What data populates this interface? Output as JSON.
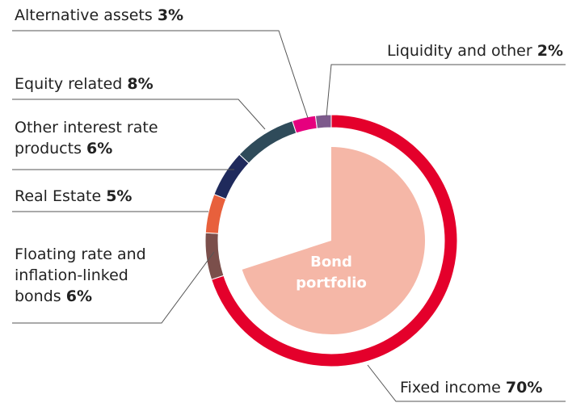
{
  "chart_data": {
    "type": "donut",
    "categories": [
      "Fixed income",
      "Floating rate and inflation-linked bonds",
      "Real Estate",
      "Other interest rate products",
      "Equity related",
      "Alternative assets",
      "Liquidity and other"
    ],
    "values": [
      70,
      6,
      5,
      6,
      8,
      3,
      2
    ],
    "value_labels": [
      "70%",
      "6%",
      "5%",
      "6%",
      "8%",
      "3%",
      "2%"
    ],
    "colors": [
      "#e4002b",
      "#7b4f4b",
      "#e8603c",
      "#1f2a5c",
      "#2f4b5a",
      "#e6007e",
      "#7d5a8c"
    ],
    "inner_label": "Bond portfolio",
    "inner_color": "#f5b7a7"
  }
}
